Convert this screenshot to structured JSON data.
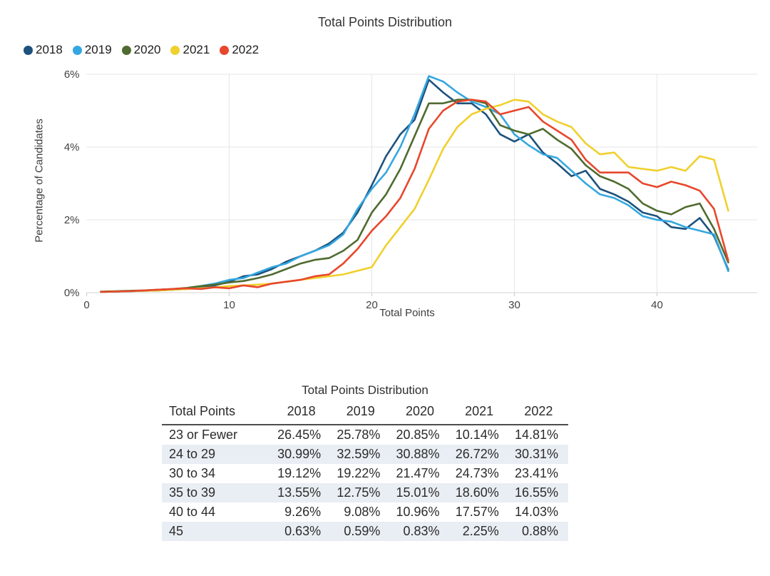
{
  "chart_data": [
    {
      "type": "line",
      "title": "Total Points Distribution",
      "xlabel": "Total Points",
      "ylabel": "Percentage of Candidates",
      "x_start": 1,
      "x_tick_values": [
        0,
        10,
        20,
        30,
        40
      ],
      "x_tick_labels": [
        "0",
        "10",
        "20",
        "30",
        "40"
      ],
      "y_tick_values": [
        0,
        2,
        4,
        6
      ],
      "y_tick_labels": [
        "0%",
        "2%",
        "4%",
        "6%"
      ],
      "ylim": [
        0,
        6
      ],
      "xlim": [
        0,
        47
      ],
      "grid": true,
      "legend_position": "top-left",
      "series": [
        {
          "name": "2018",
          "color": "#1d527d",
          "values": [
            0.02,
            0.03,
            0.04,
            0.05,
            0.06,
            0.08,
            0.1,
            0.15,
            0.2,
            0.3,
            0.45,
            0.5,
            0.65,
            0.85,
            1.0,
            1.15,
            1.35,
            1.65,
            2.2,
            2.95,
            3.75,
            4.35,
            4.75,
            5.85,
            5.5,
            5.2,
            5.2,
            4.9,
            4.35,
            4.15,
            4.35,
            3.85,
            3.55,
            3.2,
            3.35,
            2.85,
            2.7,
            2.5,
            2.2,
            2.1,
            1.8,
            1.75,
            2.05,
            1.55,
            0.63
          ]
        },
        {
          "name": "2019",
          "color": "#34a7e0",
          "values": [
            0.02,
            0.03,
            0.04,
            0.05,
            0.07,
            0.09,
            0.12,
            0.18,
            0.25,
            0.35,
            0.4,
            0.55,
            0.7,
            0.8,
            1.0,
            1.15,
            1.3,
            1.6,
            2.3,
            2.85,
            3.3,
            4.0,
            4.9,
            5.95,
            5.8,
            5.5,
            5.25,
            5.1,
            4.9,
            4.35,
            4.05,
            3.8,
            3.7,
            3.35,
            3.0,
            2.7,
            2.6,
            2.4,
            2.1,
            2.0,
            1.95,
            1.8,
            1.7,
            1.6,
            0.59
          ]
        },
        {
          "name": "2020",
          "color": "#4f6b2f",
          "values": [
            0.03,
            0.04,
            0.05,
            0.06,
            0.08,
            0.1,
            0.13,
            0.18,
            0.22,
            0.28,
            0.32,
            0.4,
            0.5,
            0.65,
            0.8,
            0.9,
            0.95,
            1.15,
            1.45,
            2.2,
            2.7,
            3.4,
            4.3,
            5.2,
            5.2,
            5.3,
            5.3,
            5.2,
            4.6,
            4.45,
            4.35,
            4.5,
            4.2,
            3.95,
            3.5,
            3.2,
            3.05,
            2.85,
            2.45,
            2.25,
            2.15,
            2.35,
            2.45,
            1.75,
            0.83
          ]
        },
        {
          "name": "2021",
          "color": "#f0d02e",
          "values": [
            0.02,
            0.03,
            0.04,
            0.05,
            0.06,
            0.08,
            0.1,
            0.12,
            0.15,
            0.18,
            0.2,
            0.22,
            0.25,
            0.3,
            0.35,
            0.4,
            0.45,
            0.5,
            0.6,
            0.7,
            1.3,
            1.8,
            2.3,
            3.1,
            3.95,
            4.55,
            4.9,
            5.05,
            5.15,
            5.3,
            5.25,
            4.9,
            4.7,
            4.55,
            4.1,
            3.8,
            3.85,
            3.45,
            3.4,
            3.35,
            3.45,
            3.35,
            3.75,
            3.65,
            2.25
          ]
        },
        {
          "name": "2022",
          "color": "#e7472c",
          "values": [
            0.02,
            0.03,
            0.04,
            0.06,
            0.08,
            0.1,
            0.12,
            0.1,
            0.15,
            0.12,
            0.2,
            0.15,
            0.25,
            0.3,
            0.35,
            0.45,
            0.5,
            0.8,
            1.2,
            1.7,
            2.1,
            2.6,
            3.4,
            4.5,
            5.0,
            5.25,
            5.3,
            5.25,
            4.9,
            5.0,
            5.1,
            4.7,
            4.45,
            4.2,
            3.65,
            3.3,
            3.3,
            3.3,
            3.0,
            2.9,
            3.05,
            2.95,
            2.8,
            2.3,
            0.88
          ]
        }
      ]
    },
    {
      "type": "table",
      "title": "Total Points Distribution",
      "columns": [
        "Total Points",
        "2018",
        "2019",
        "2020",
        "2021",
        "2022"
      ],
      "rows": [
        [
          "23 or Fewer",
          "26.45%",
          "25.78%",
          "20.85%",
          "10.14%",
          "14.81%"
        ],
        [
          "24 to 29",
          "30.99%",
          "32.59%",
          "30.88%",
          "26.72%",
          "30.31%"
        ],
        [
          "30 to 34",
          "19.12%",
          "19.22%",
          "21.47%",
          "24.73%",
          "23.41%"
        ],
        [
          "35 to 39",
          "13.55%",
          "12.75%",
          "15.01%",
          "18.60%",
          "16.55%"
        ],
        [
          "40 to 44",
          "9.26%",
          "9.08%",
          "10.96%",
          "17.57%",
          "14.03%"
        ],
        [
          "45",
          "0.63%",
          "0.59%",
          "0.83%",
          "2.25%",
          "0.88%"
        ]
      ]
    }
  ],
  "colors": {
    "gridline": "#e9e9e9",
    "axis_line": "#dcdcdc",
    "tick": "#cfcfcf",
    "tick_label": "#424242",
    "table_shaded_row": "#e9eef4"
  }
}
